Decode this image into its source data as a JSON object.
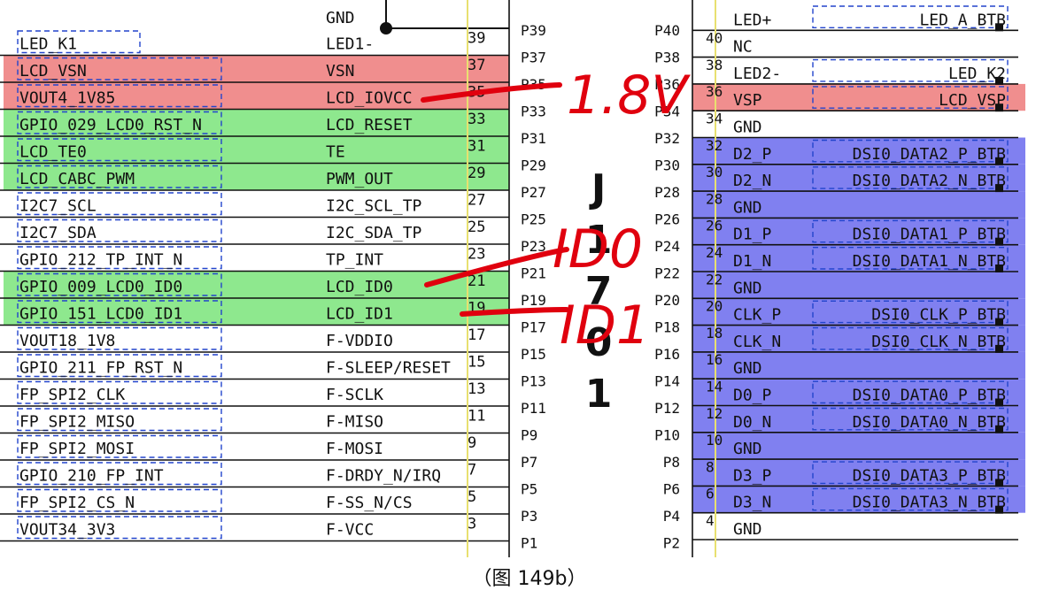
{
  "caption": "（图 149b）",
  "connector": {
    "designator_chars": [
      "J",
      "1",
      "7",
      "0",
      "1"
    ]
  },
  "top_label": "GND",
  "left_rows": [
    {
      "net": "LED_K1",
      "signal": "LED1-",
      "pin": "39",
      "bg": "none"
    },
    {
      "net": "LCD_VSN",
      "signal": "VSN",
      "pin": "37",
      "bg": "red"
    },
    {
      "net": "VOUT4_1V85",
      "signal": "LCD_IOVCC",
      "pin": "35",
      "bg": "red"
    },
    {
      "net": "GPIO_029_LCD0_RST_N",
      "signal": "LCD_RESET",
      "pin": "33",
      "bg": "green"
    },
    {
      "net": "LCD_TE0",
      "signal": "TE",
      "pin": "31",
      "bg": "green"
    },
    {
      "net": "LCD_CABC_PWM",
      "signal": "PWM_OUT",
      "pin": "29",
      "bg": "green"
    },
    {
      "net": "I2C7_SCL",
      "signal": "I2C_SCL_TP",
      "pin": "27",
      "bg": "none"
    },
    {
      "net": "I2C7_SDA",
      "signal": "I2C_SDA_TP",
      "pin": "25",
      "bg": "none"
    },
    {
      "net": "GPIO_212_TP_INT_N",
      "signal": "TP_INT",
      "pin": "23",
      "bg": "none"
    },
    {
      "net": "GPIO_009_LCD0_ID0",
      "signal": "LCD_ID0",
      "pin": "21",
      "bg": "green"
    },
    {
      "net": "GPIO_151_LCD0_ID1",
      "signal": "LCD_ID1",
      "pin": "19",
      "bg": "green"
    },
    {
      "net": "VOUT18_1V8",
      "signal": "F-VDDIO",
      "pin": "17",
      "bg": "none"
    },
    {
      "net": "GPIO_211_FP_RST_N",
      "signal": "F-SLEEP/RESET",
      "pin": "15",
      "bg": "none"
    },
    {
      "net": "FP_SPI2_CLK",
      "signal": "F-SCLK",
      "pin": "13",
      "bg": "none"
    },
    {
      "net": "FP_SPI2_MISO",
      "signal": "F-MISO",
      "pin": "11",
      "bg": "none"
    },
    {
      "net": "FP_SPI2_MOSI",
      "signal": "F-MOSI",
      "pin": "9",
      "bg": "none"
    },
    {
      "net": "GPIO_210_FP_INT",
      "signal": "F-DRDY_N/IRQ",
      "pin": "7",
      "bg": "none"
    },
    {
      "net": "FP_SPI2_CS_N",
      "signal": "F-SS_N/CS",
      "pin": "5",
      "bg": "none"
    },
    {
      "net": "VOUT34_3V3",
      "signal": "F-VCC",
      "pin": "3",
      "bg": "none"
    }
  ],
  "left_pads": [
    "P39",
    "P37",
    "P35",
    "P33",
    "P31",
    "P29",
    "P27",
    "P25",
    "P23",
    "P21",
    "P19",
    "P17",
    "P15",
    "P13",
    "P11",
    "P9",
    "P7",
    "P5",
    "P3",
    "P1"
  ],
  "right_pads": [
    "P40",
    "P38",
    "P36",
    "P34",
    "P32",
    "P30",
    "P28",
    "P26",
    "P24",
    "P22",
    "P20",
    "P18",
    "P16",
    "P14",
    "P12",
    "P10",
    "P8",
    "P6",
    "P4",
    "P2"
  ],
  "right_rows": [
    {
      "pin": "",
      "signal": "LED+",
      "net": "LED_A_BTB",
      "bg": "none"
    },
    {
      "pin": "40",
      "signal": "NC",
      "net": "",
      "bg": "none"
    },
    {
      "pin": "38",
      "signal": "LED2-",
      "net": "LED_K2",
      "bg": "none"
    },
    {
      "pin": "36",
      "signal": "VSP",
      "net": "LCD_VSP",
      "bg": "red"
    },
    {
      "pin": "34",
      "signal": "GND",
      "net": "",
      "bg": "none"
    },
    {
      "pin": "32",
      "signal": "D2_P",
      "net": "DSI0_DATA2_P_BTB",
      "bg": "blue"
    },
    {
      "pin": "30",
      "signal": "D2_N",
      "net": "DSI0_DATA2_N_BTB",
      "bg": "blue"
    },
    {
      "pin": "28",
      "signal": "GND",
      "net": "",
      "bg": "blue"
    },
    {
      "pin": "26",
      "signal": "D1_P",
      "net": "DSI0_DATA1_P_BTB",
      "bg": "blue"
    },
    {
      "pin": "24",
      "signal": "D1_N",
      "net": "DSI0_DATA1_N_BTB",
      "bg": "blue"
    },
    {
      "pin": "22",
      "signal": "GND",
      "net": "",
      "bg": "blue"
    },
    {
      "pin": "20",
      "signal": "CLK_P",
      "net": "DSI0_CLK_P_BTB",
      "bg": "blue"
    },
    {
      "pin": "18",
      "signal": "CLK_N",
      "net": "DSI0_CLK_N_BTB",
      "bg": "blue"
    },
    {
      "pin": "16",
      "signal": "GND",
      "net": "",
      "bg": "blue"
    },
    {
      "pin": "14",
      "signal": "D0_P",
      "net": "DSI0_DATA0_P_BTB",
      "bg": "blue"
    },
    {
      "pin": "12",
      "signal": "D0_N",
      "net": "DSI0_DATA0_N_BTB",
      "bg": "blue"
    },
    {
      "pin": "10",
      "signal": "GND",
      "net": "",
      "bg": "blue"
    },
    {
      "pin": "8",
      "signal": "D3_P",
      "net": "DSI0_DATA3_P_BTB",
      "bg": "blue"
    },
    {
      "pin": "6",
      "signal": "D3_N",
      "net": "DSI0_DATA3_N_BTB",
      "bg": "blue"
    },
    {
      "pin": "4",
      "signal": "GND",
      "net": "",
      "bg": "none"
    }
  ],
  "annotations": [
    "1.8V",
    "ID0",
    "ID1"
  ],
  "colors": {
    "red": "#f08e8e",
    "green": "#8ee88e",
    "blue": "#8080f0",
    "ink": "#111111",
    "pen": "#e0000e",
    "watermark": "#1f4ed8"
  }
}
